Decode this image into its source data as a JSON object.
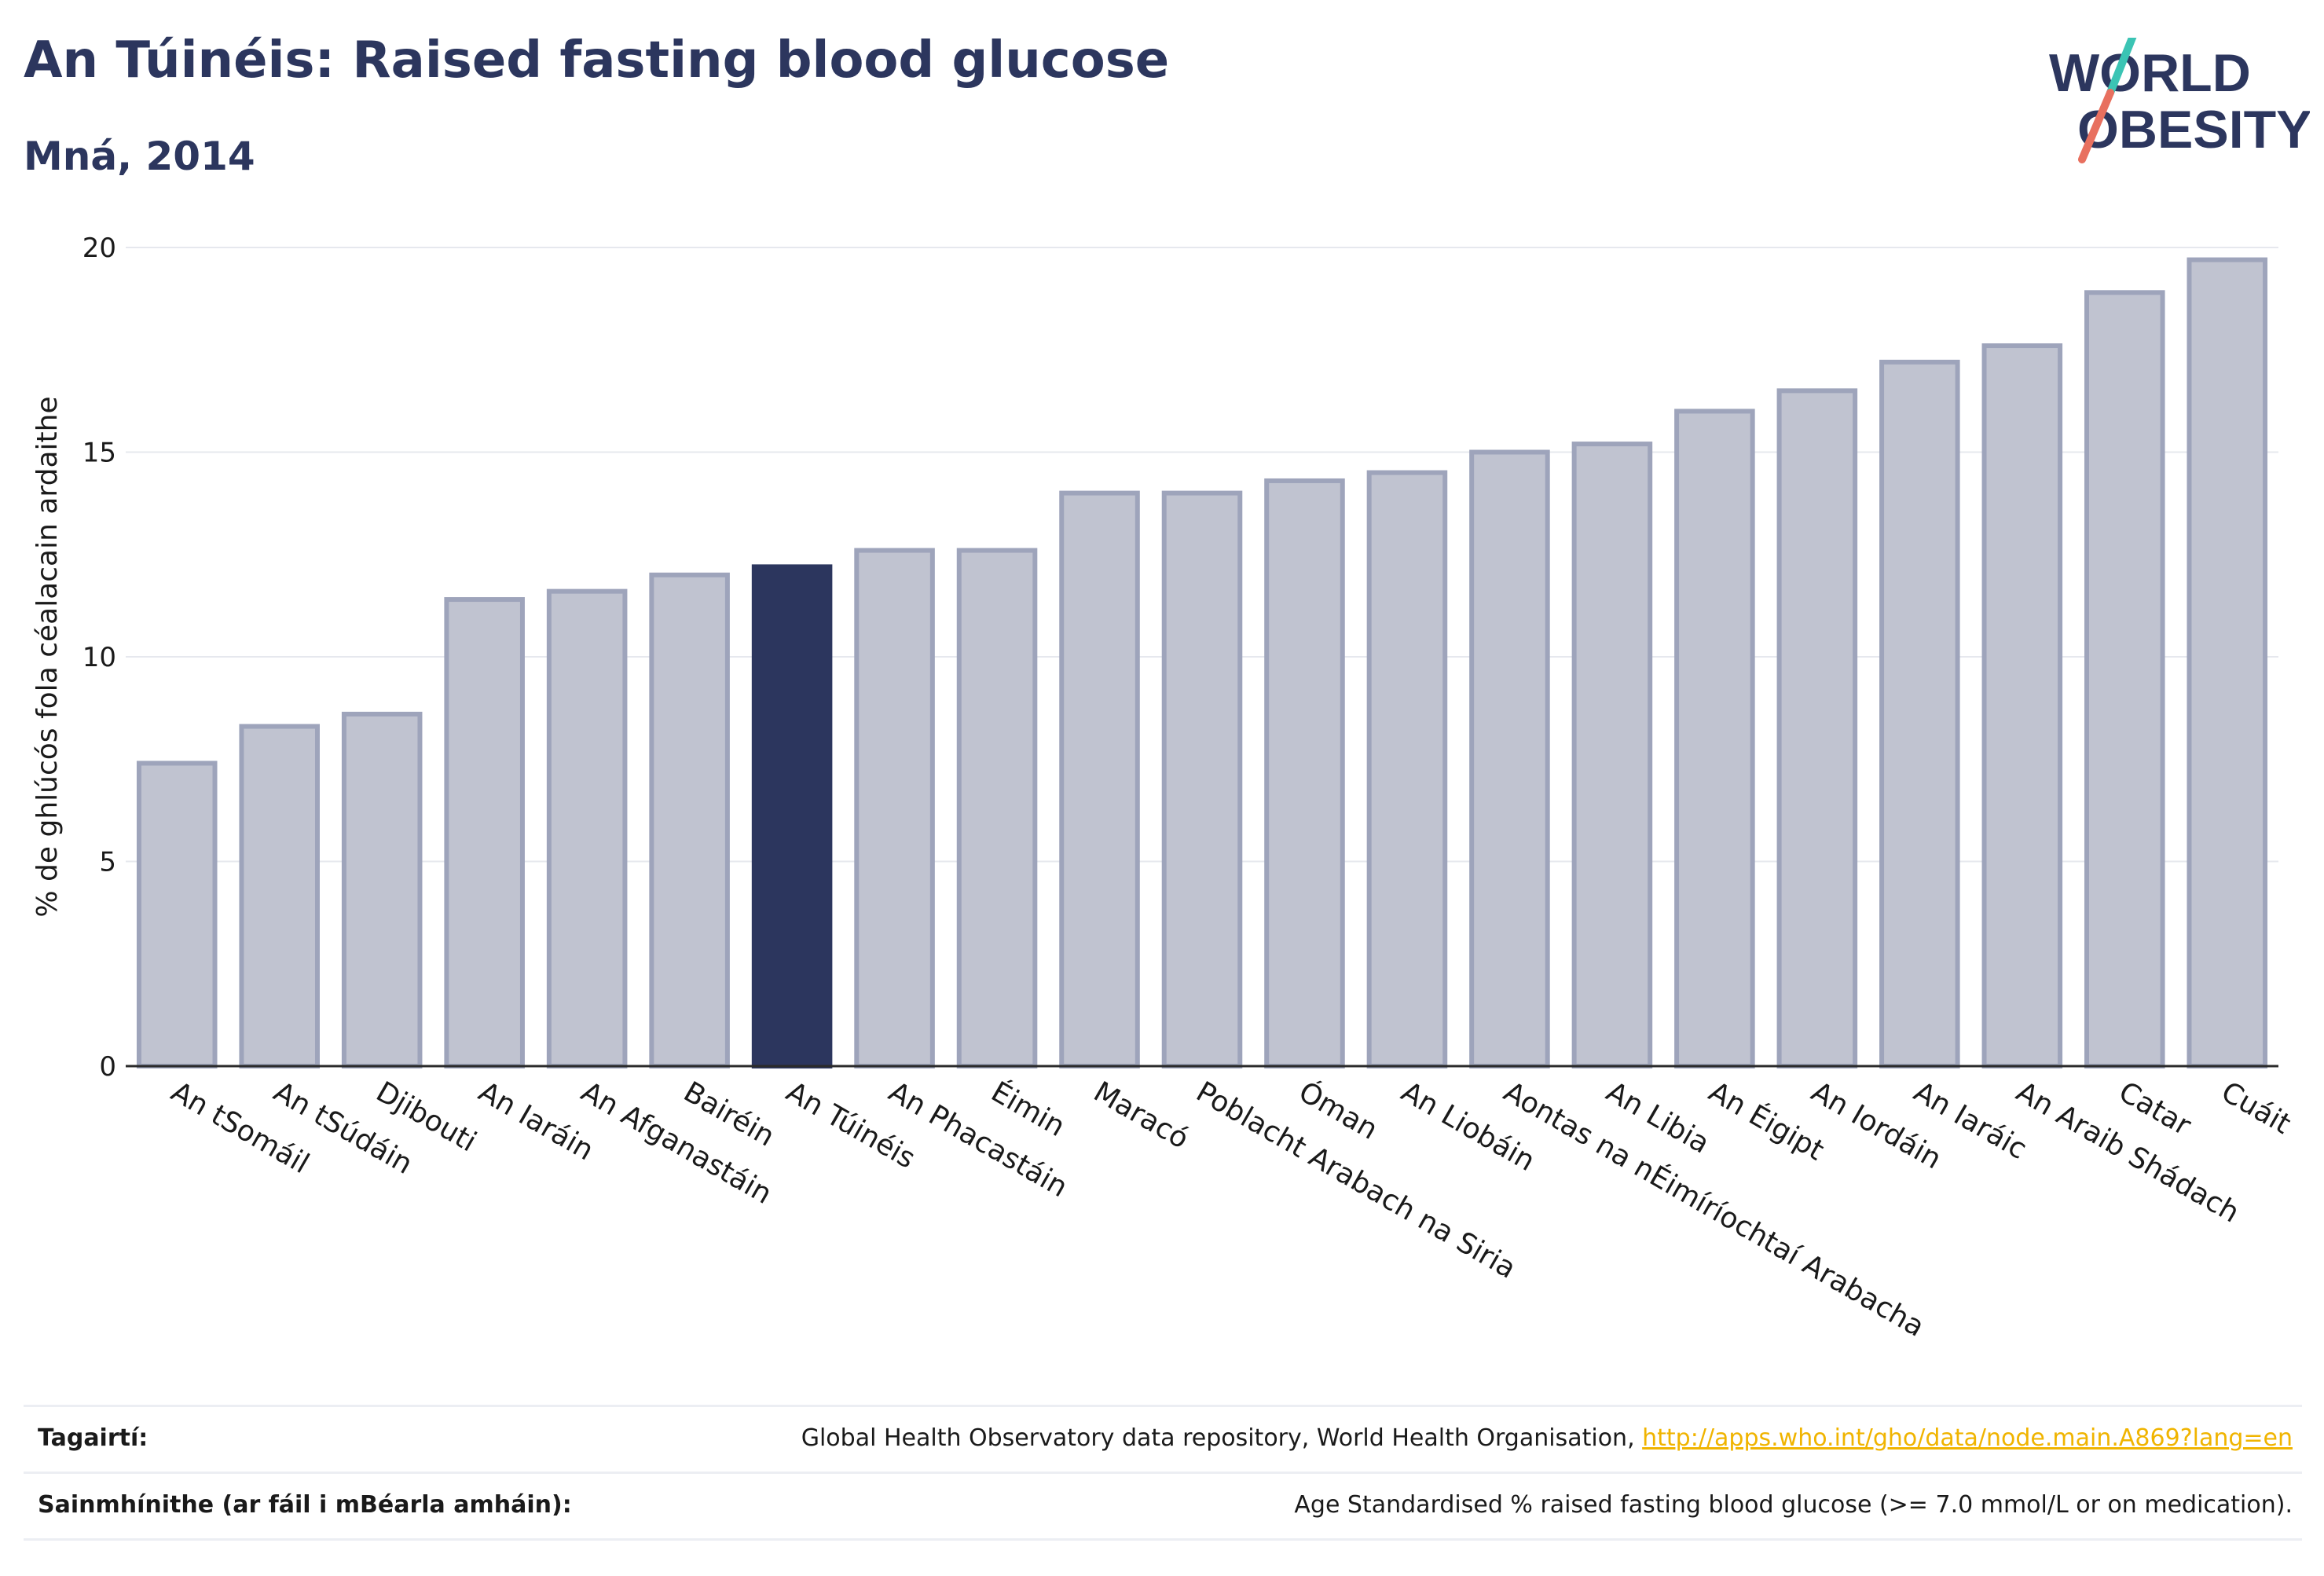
{
  "header": {
    "title": "An Túinéis: Raised fasting blood glucose",
    "subtitle": "Mná, 2014"
  },
  "logo": {
    "line1": "WORLD",
    "line2": "OBESITY",
    "text_color": "#2c365e",
    "slash_colors": [
      "#3bc4b4",
      "#e8705f"
    ]
  },
  "colors": {
    "bar": "#c0c3d0",
    "bar_border": "#9ea4bb",
    "highlight": "#2c365e",
    "grid": "#e6e8ee",
    "axis": "#2b2b2b"
  },
  "chart_data": {
    "type": "bar",
    "title": "An Túinéis: Raised fasting blood glucose",
    "subtitle": "Mná, 2014",
    "ylabel": "% de ghlúcós fola céalacain ardaithe",
    "xlabel": "",
    "ylim": [
      0,
      20
    ],
    "yticks": [
      0,
      5,
      10,
      15,
      20
    ],
    "grid": true,
    "highlight_category": "An Túinéis",
    "categories": [
      "An tSomáil",
      "An tSúdáin",
      "Djibouti",
      "An Iaráin",
      "An Afganastáin",
      "Bairéin",
      "An Túinéis",
      "An Phacastáin",
      "Éimin",
      "Maracó",
      "Poblacht Arabach na Siria",
      "Óman",
      "An Liobáin",
      "Aontas na nÉimíríochtaí Arabacha",
      "An Libia",
      "An Éigipt",
      "An Iordáin",
      "An Iaráic",
      "An Araib Shádach",
      "Catar",
      "Cuáit"
    ],
    "values": [
      7.4,
      8.3,
      8.6,
      11.4,
      11.6,
      12.0,
      12.2,
      12.6,
      12.6,
      14.0,
      14.0,
      14.3,
      14.5,
      15.0,
      15.2,
      16.0,
      16.5,
      17.2,
      17.6,
      18.9,
      19.7
    ]
  },
  "references": {
    "sources_label": "Tagairtí:",
    "sources_text": "Global Health Observatory data repository, World Health Organisation, ",
    "sources_link": "http://apps.who.int/gho/data/node.main.A869?lang=en",
    "definitions_label": "Sainmhínithe (ar fáil i mBéarla amháin):",
    "definitions_text": "Age Standardised % raised fasting blood glucose (>= 7.0 mmol/L or on medication)."
  }
}
